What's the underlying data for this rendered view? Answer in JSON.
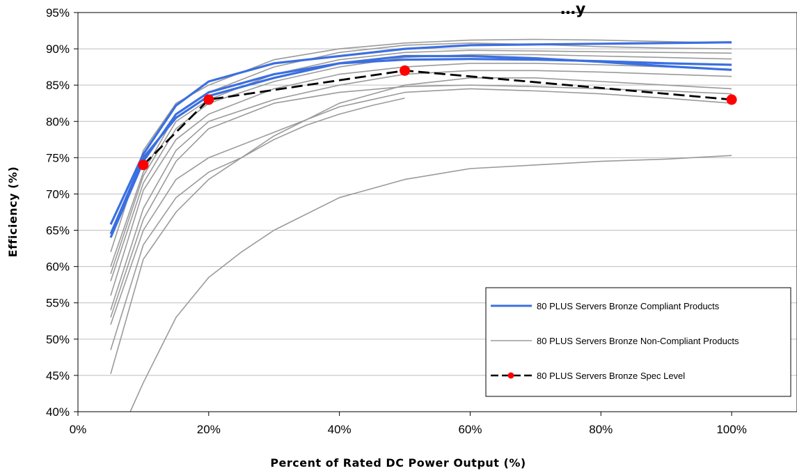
{
  "chart_data": {
    "type": "line",
    "title": "…y",
    "xlabel": "Percent of Rated DC Power Output (%)",
    "ylabel": "Efficiency (%)",
    "xlim": [
      0,
      110
    ],
    "ylim": [
      40,
      95
    ],
    "x_ticks": [
      0,
      20,
      40,
      60,
      80,
      100
    ],
    "x_tick_labels": [
      "0%",
      "20%",
      "40%",
      "60%",
      "80%",
      "100%"
    ],
    "y_ticks": [
      40,
      45,
      50,
      55,
      60,
      65,
      70,
      75,
      80,
      85,
      90,
      95
    ],
    "y_tick_labels": [
      "40%",
      "45%",
      "50%",
      "55%",
      "60%",
      "65%",
      "70%",
      "75%",
      "80%",
      "85%",
      "90%",
      "95%"
    ],
    "grid": "horizontal",
    "legend_placement": "bottom-right",
    "colors": {
      "compliant": "#3b6fe0",
      "non_compliant": "#9a9a9a",
      "spec_line": "#000000",
      "spec_marker": "#ff0000"
    },
    "series": [
      {
        "name": "80 PLUS Servers Bronze Compliant Products",
        "style": "compliant",
        "lines": [
          {
            "x": [
              5,
              10,
              15,
              20,
              30,
              40,
              50,
              60,
              70,
              80,
              90,
              100
            ],
            "y": [
              65.8,
              75.5,
              82.2,
              85.5,
              88.0,
              89.0,
              90.0,
              90.5,
              90.6,
              90.7,
              90.8,
              90.9
            ]
          },
          {
            "x": [
              5,
              10,
              15,
              20,
              30,
              40,
              50,
              60,
              70,
              80,
              90,
              100
            ],
            "y": [
              64.0,
              74.5,
              81.0,
              84.0,
              86.5,
              88.0,
              88.5,
              88.6,
              88.5,
              88.3,
              88.0,
              87.8
            ]
          },
          {
            "x": [
              5,
              10,
              15,
              20,
              30,
              40,
              50,
              60,
              70,
              80,
              90,
              100
            ],
            "y": [
              64.5,
              75.0,
              80.5,
              83.5,
              86.0,
              88.0,
              89.0,
              89.0,
              88.7,
              88.2,
              87.6,
              87.1
            ]
          }
        ]
      },
      {
        "name": "80 PLUS Servers Bronze Non-Compliant Products",
        "style": "non_compliant",
        "lines": [
          {
            "x": [
              5,
              10,
              15,
              20,
              30,
              40,
              50,
              60,
              70,
              80,
              90,
              100
            ],
            "y": [
              62.0,
              76.0,
              82.5,
              85.0,
              88.5,
              90.0,
              90.8,
              91.2,
              91.3,
              91.2,
              91.0,
              90.8
            ]
          },
          {
            "x": [
              5,
              10,
              15,
              20,
              30,
              40,
              50,
              60,
              70,
              80,
              90,
              100
            ],
            "y": [
              60.0,
              73.0,
              81.0,
              84.0,
              87.5,
              89.5,
              90.5,
              90.8,
              90.6,
              90.3,
              90.1,
              90.0
            ]
          },
          {
            "x": [
              5,
              10,
              15,
              20,
              30,
              40,
              50,
              60,
              70,
              80,
              90,
              100
            ],
            "y": [
              59.0,
              72.5,
              80.0,
              83.0,
              86.5,
              88.5,
              89.5,
              89.8,
              89.7,
              89.6,
              89.5,
              89.4
            ]
          },
          {
            "x": [
              5,
              10,
              15,
              20,
              30,
              40,
              50,
              60,
              70,
              80,
              90,
              100
            ],
            "y": [
              58.0,
              71.5,
              79.0,
              82.5,
              85.5,
              87.5,
              88.8,
              89.2,
              89.2,
              89.0,
              88.8,
              88.6
            ]
          },
          {
            "x": [
              5,
              10,
              15,
              20,
              30,
              40,
              50,
              60,
              70,
              80,
              90,
              100
            ],
            "y": [
              56.0,
              70.5,
              77.5,
              81.0,
              84.5,
              86.5,
              87.5,
              88.0,
              88.0,
              87.8,
              87.5,
              87.2
            ]
          },
          {
            "x": [
              5,
              10,
              15,
              20,
              30,
              40,
              50,
              60,
              70,
              80,
              90,
              100
            ],
            "y": [
              54.0,
              68.0,
              76.0,
              80.0,
              83.0,
              85.0,
              86.5,
              87.0,
              87.0,
              86.8,
              86.5,
              86.2
            ]
          },
          {
            "x": [
              5,
              10,
              15,
              20,
              30,
              40,
              50,
              60,
              70,
              80,
              90,
              100
            ],
            "y": [
              53.0,
              66.5,
              74.5,
              79.0,
              82.5,
              84.0,
              84.8,
              85.0,
              84.8,
              84.5,
              84.2,
              83.8
            ]
          },
          {
            "x": [
              5,
              10,
              15,
              20,
              30,
              40,
              50,
              60,
              70,
              80,
              90,
              100
            ],
            "y": [
              52.0,
              65.0,
              72.0,
              75.0,
              78.5,
              82.0,
              84.0,
              84.5,
              84.2,
              83.8,
              83.2,
              82.5
            ]
          },
          {
            "x": [
              5,
              10,
              15,
              20,
              25,
              30,
              35,
              40,
              45,
              50
            ],
            "y": [
              48.5,
              63.0,
              69.5,
              73.0,
              75.0,
              77.5,
              79.5,
              81.0,
              82.2,
              83.2
            ]
          },
          {
            "x": [
              5,
              10,
              15,
              20,
              25,
              30,
              40,
              50,
              60,
              70,
              80,
              90,
              100
            ],
            "y": [
              45.2,
              61.0,
              67.5,
              72.0,
              75.0,
              78.0,
              82.5,
              85.0,
              86.0,
              86.0,
              85.5,
              85.0,
              84.5
            ]
          },
          {
            "x": [
              8,
              10,
              15,
              20,
              25,
              30,
              40,
              50,
              60,
              70,
              80,
              90,
              100
            ],
            "y": [
              40.0,
              44.0,
              53.0,
              58.5,
              62.0,
              65.0,
              69.5,
              72.0,
              73.5,
              74.0,
              74.5,
              74.8,
              75.3
            ]
          }
        ]
      },
      {
        "name": "80 PLUS Servers Bronze Spec Level",
        "style": "spec",
        "x": [
          10,
          20,
          50,
          100
        ],
        "y": [
          74.0,
          83.0,
          87.0,
          83.0
        ]
      }
    ]
  }
}
